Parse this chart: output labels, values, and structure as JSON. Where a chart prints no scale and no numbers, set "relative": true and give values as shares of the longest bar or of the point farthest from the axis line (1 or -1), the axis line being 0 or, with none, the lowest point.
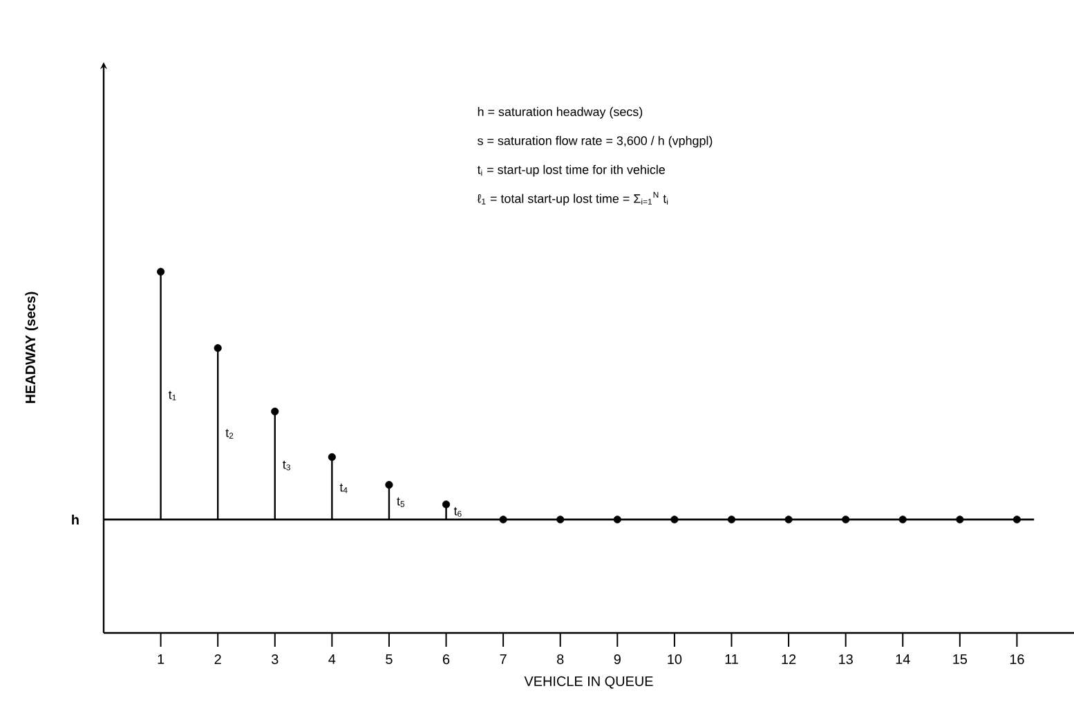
{
  "chart_data": {
    "type": "lollipop",
    "xlabel": "VEHICLE IN QUEUE",
    "ylabel": "HEADWAY (secs)",
    "relative": true,
    "categories": [
      "1",
      "2",
      "3",
      "4",
      "5",
      "6",
      "7",
      "8",
      "9",
      "10",
      "11",
      "12",
      "13",
      "14",
      "15",
      "16"
    ],
    "values": [
      1,
      0.692,
      0.436,
      0.252,
      0.14,
      0.061,
      0,
      0,
      0,
      0,
      0,
      0,
      0,
      0,
      0,
      0
    ],
    "color": "#000000",
    "marker": "circle",
    "ref_lines": [
      {
        "axis": "y",
        "value": 0,
        "label": "h"
      }
    ],
    "annotations": [
      "h = saturation headway (secs)",
      "s = saturation flow rate = 3,600 / h (vphgpl)",
      "t$_{i}$ = start-up lost time for ith vehicle",
      "ℓ$_{1}$ = total start-up lost time = Σ$_{i=1}$$^{N}$ t$_{i}$",
      "t$_{1}$",
      "t$_{2}$",
      "t$_{3}$",
      "t$_{4}$",
      "t$_{5}$",
      "t$_{6}$"
    ]
  }
}
